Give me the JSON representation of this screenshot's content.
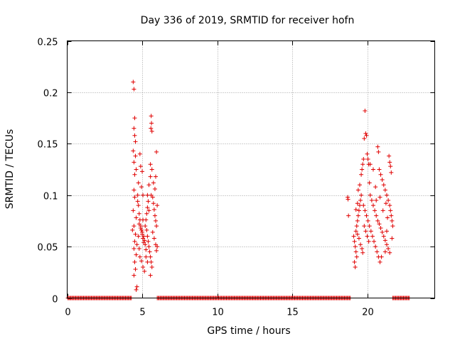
{
  "chart_data": {
    "type": "scatter",
    "title": "Day 336 of 2019, SRMTID for receiver hofn",
    "xlabel": "GPS time / hours",
    "ylabel": "SRMTID / TECUs",
    "xlim": [
      0,
      24.5
    ],
    "ylim": [
      0,
      0.25
    ],
    "xticks": [
      0,
      5,
      10,
      15,
      20
    ],
    "xtick_labels": [
      "0",
      "5",
      "10",
      "15",
      "20"
    ],
    "yticks": [
      0,
      0.05,
      0.1,
      0.15,
      0.2,
      0.25
    ],
    "ytick_labels": [
      "0",
      "0.05",
      "0.1",
      "0.15",
      "0.2",
      "0.25"
    ],
    "grid": true,
    "marker": "+",
    "series": [
      {
        "name": "SRMTID",
        "color": "#e00000",
        "points": [
          [
            4.4,
            0.21
          ],
          [
            4.45,
            0.203
          ],
          [
            4.5,
            0.175
          ],
          [
            4.45,
            0.165
          ],
          [
            4.5,
            0.158
          ],
          [
            4.55,
            0.152
          ],
          [
            4.4,
            0.143
          ],
          [
            4.55,
            0.138
          ],
          [
            4.45,
            0.132
          ],
          [
            4.6,
            0.125
          ],
          [
            4.5,
            0.12
          ],
          [
            4.45,
            0.105
          ],
          [
            4.5,
            0.098
          ],
          [
            4.4,
            0.085
          ],
          [
            4.6,
            0.078
          ],
          [
            4.45,
            0.07
          ],
          [
            4.35,
            0.066
          ],
          [
            4.55,
            0.062
          ],
          [
            4.5,
            0.055
          ],
          [
            4.45,
            0.048
          ],
          [
            4.6,
            0.042
          ],
          [
            4.5,
            0.035
          ],
          [
            4.55,
            0.028
          ],
          [
            4.45,
            0.022
          ],
          [
            4.65,
            0.011
          ],
          [
            4.6,
            0.008
          ],
          [
            4.7,
            0.1
          ],
          [
            4.75,
            0.09
          ],
          [
            4.8,
            0.082
          ],
          [
            4.85,
            0.076
          ],
          [
            4.9,
            0.07
          ],
          [
            4.95,
            0.066
          ],
          [
            5.0,
            0.062
          ],
          [
            5.05,
            0.058
          ],
          [
            5.1,
            0.054
          ],
          [
            4.8,
            0.048
          ],
          [
            4.85,
            0.14
          ],
          [
            4.9,
            0.128
          ],
          [
            5.0,
            0.123
          ],
          [
            4.75,
            0.112
          ],
          [
            4.95,
            0.108
          ],
          [
            5.05,
            0.1
          ],
          [
            4.7,
            0.094
          ],
          [
            4.8,
            0.072
          ],
          [
            4.9,
            0.068
          ],
          [
            5.0,
            0.064
          ],
          [
            5.1,
            0.06
          ],
          [
            5.15,
            0.056
          ],
          [
            5.2,
            0.052
          ],
          [
            5.25,
            0.047
          ],
          [
            4.85,
            0.04
          ],
          [
            4.95,
            0.036
          ],
          [
            5.05,
            0.03
          ],
          [
            5.15,
            0.026
          ],
          [
            5.2,
            0.07
          ],
          [
            5.25,
            0.076
          ],
          [
            5.3,
            0.082
          ],
          [
            5.35,
            0.088
          ],
          [
            5.4,
            0.094
          ],
          [
            5.45,
            0.085
          ],
          [
            5.3,
            0.066
          ],
          [
            5.35,
            0.06
          ],
          [
            5.4,
            0.055
          ],
          [
            5.45,
            0.05
          ],
          [
            5.5,
            0.045
          ],
          [
            5.55,
            0.04
          ],
          [
            5.6,
            0.035
          ],
          [
            5.65,
            0.03
          ],
          [
            5.55,
            0.022
          ],
          [
            5.35,
            0.1
          ],
          [
            5.45,
            0.11
          ],
          [
            5.55,
            0.118
          ],
          [
            5.6,
            0.177
          ],
          [
            5.62,
            0.17
          ],
          [
            5.58,
            0.165
          ],
          [
            5.65,
            0.162
          ],
          [
            5.55,
            0.13
          ],
          [
            5.65,
            0.125
          ],
          [
            5.7,
            0.098
          ],
          [
            5.75,
            0.092
          ],
          [
            5.8,
            0.086
          ],
          [
            5.85,
            0.08
          ],
          [
            5.9,
            0.075
          ],
          [
            5.95,
            0.07
          ],
          [
            5.7,
            0.064
          ],
          [
            5.8,
            0.058
          ],
          [
            5.9,
            0.052
          ],
          [
            5.95,
            0.046
          ],
          [
            6.0,
            0.05
          ],
          [
            5.85,
            0.106
          ],
          [
            5.9,
            0.118
          ],
          [
            5.95,
            0.142
          ],
          [
            5.75,
            0.112
          ],
          [
            6.0,
            0.09
          ],
          [
            5.6,
            0.1
          ],
          [
            5.05,
            0.076
          ],
          [
            4.75,
            0.06
          ],
          [
            4.65,
            0.052
          ],
          [
            5.25,
            0.04
          ],
          [
            5.35,
            0.035
          ],
          [
            18.7,
            0.098
          ],
          [
            18.72,
            0.096
          ],
          [
            18.75,
            0.08
          ],
          [
            19.1,
            0.06
          ],
          [
            19.15,
            0.055
          ],
          [
            19.2,
            0.05
          ],
          [
            19.25,
            0.045
          ],
          [
            19.3,
            0.04
          ],
          [
            19.15,
            0.035
          ],
          [
            19.2,
            0.03
          ],
          [
            19.25,
            0.065
          ],
          [
            19.3,
            0.07
          ],
          [
            19.35,
            0.075
          ],
          [
            19.4,
            0.08
          ],
          [
            19.45,
            0.085
          ],
          [
            19.5,
            0.09
          ],
          [
            19.55,
            0.095
          ],
          [
            19.6,
            0.1
          ],
          [
            19.35,
            0.062
          ],
          [
            19.45,
            0.058
          ],
          [
            19.55,
            0.052
          ],
          [
            19.65,
            0.048
          ],
          [
            19.7,
            0.044
          ],
          [
            19.6,
            0.12
          ],
          [
            19.65,
            0.125
          ],
          [
            19.7,
            0.13
          ],
          [
            19.75,
            0.135
          ],
          [
            19.8,
            0.155
          ],
          [
            19.85,
            0.182
          ],
          [
            19.9,
            0.16
          ],
          [
            19.95,
            0.158
          ],
          [
            20.0,
            0.14
          ],
          [
            20.05,
            0.135
          ],
          [
            20.1,
            0.13
          ],
          [
            19.75,
            0.09
          ],
          [
            19.85,
            0.085
          ],
          [
            19.95,
            0.08
          ],
          [
            20.05,
            0.075
          ],
          [
            20.15,
            0.07
          ],
          [
            20.25,
            0.065
          ],
          [
            20.35,
            0.06
          ],
          [
            20.45,
            0.055
          ],
          [
            20.55,
            0.05
          ],
          [
            20.65,
            0.045
          ],
          [
            20.75,
            0.04
          ],
          [
            20.85,
            0.035
          ],
          [
            19.8,
            0.07
          ],
          [
            19.9,
            0.065
          ],
          [
            20.0,
            0.06
          ],
          [
            20.1,
            0.055
          ],
          [
            20.2,
            0.1
          ],
          [
            20.3,
            0.095
          ],
          [
            20.4,
            0.09
          ],
          [
            20.5,
            0.085
          ],
          [
            20.6,
            0.08
          ],
          [
            20.7,
            0.075
          ],
          [
            20.8,
            0.072
          ],
          [
            20.9,
            0.068
          ],
          [
            21.0,
            0.064
          ],
          [
            21.1,
            0.06
          ],
          [
            21.2,
            0.056
          ],
          [
            21.3,
            0.052
          ],
          [
            21.4,
            0.048
          ],
          [
            21.5,
            0.044
          ],
          [
            20.7,
            0.147
          ],
          [
            20.75,
            0.142
          ],
          [
            20.8,
            0.125
          ],
          [
            20.9,
            0.12
          ],
          [
            21.0,
            0.115
          ],
          [
            21.1,
            0.11
          ],
          [
            21.2,
            0.105
          ],
          [
            21.3,
            0.1
          ],
          [
            21.4,
            0.095
          ],
          [
            21.5,
            0.09
          ],
          [
            21.55,
            0.085
          ],
          [
            21.6,
            0.08
          ],
          [
            21.65,
            0.075
          ],
          [
            21.7,
            0.07
          ],
          [
            21.45,
            0.138
          ],
          [
            21.5,
            0.132
          ],
          [
            21.55,
            0.128
          ],
          [
            21.6,
            0.122
          ],
          [
            21.3,
            0.065
          ],
          [
            21.2,
            0.045
          ],
          [
            20.95,
            0.04
          ],
          [
            20.4,
            0.125
          ],
          [
            20.2,
            0.13
          ],
          [
            19.5,
            0.11
          ],
          [
            19.4,
            0.105
          ],
          [
            20.6,
            0.095
          ],
          [
            21.05,
            0.085
          ],
          [
            21.35,
            0.078
          ],
          [
            21.65,
            0.058
          ],
          [
            19.25,
            0.086
          ],
          [
            19.35,
            0.092
          ],
          [
            20.15,
            0.112
          ],
          [
            20.55,
            0.108
          ],
          [
            20.85,
            0.098
          ],
          [
            21.25,
            0.092
          ]
        ],
        "baseline_segments": [
          [
            0.05,
            4.3
          ],
          [
            6.0,
            18.9
          ],
          [
            21.7,
            22.85
          ]
        ]
      }
    ]
  }
}
